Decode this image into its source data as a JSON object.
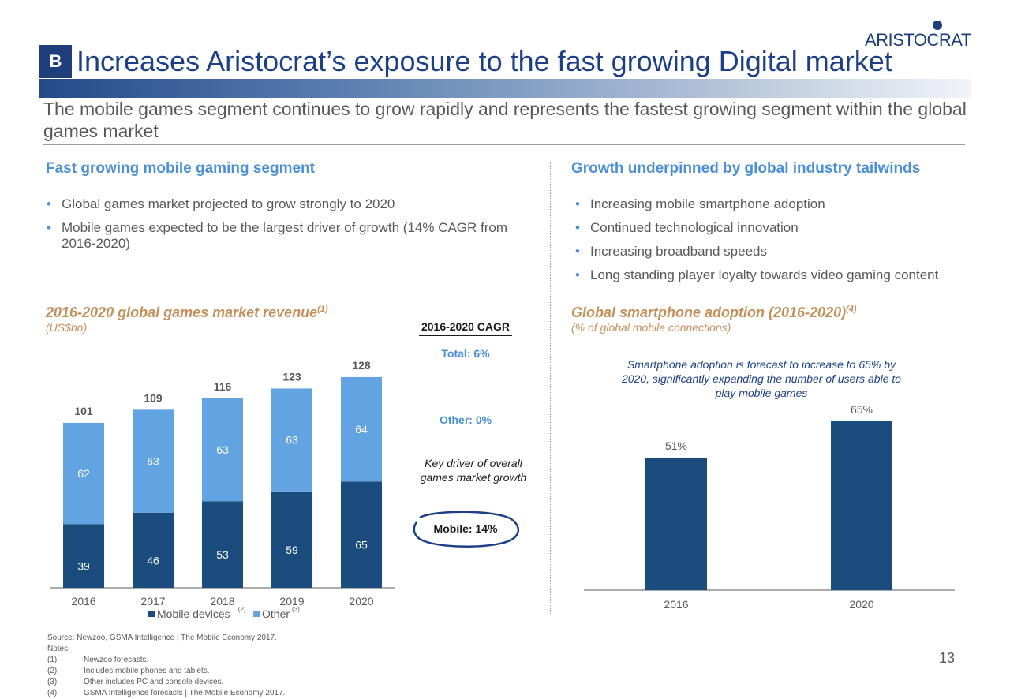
{
  "header": {
    "badge": "B",
    "title": "Increases Aristocrat’s exposure to the fast growing Digital market",
    "logo_text": "ARISTOCRAT",
    "subtitle": "The mobile games segment continues to grow rapidly and represents the fastest growing segment within the global games market"
  },
  "left": {
    "heading": "Fast growing mobile gaming segment",
    "bullets": [
      "Global games market projected to grow strongly to 2020",
      "Mobile games expected to be the largest driver of growth (14% CAGR from 2016-2020)"
    ]
  },
  "right": {
    "heading": "Growth underpinned by global industry tailwinds",
    "bullets": [
      "Increasing mobile smartphone adoption",
      "Continued technological innovation",
      "Increasing broadband speeds",
      "Long standing player loyalty towards video gaming content"
    ]
  },
  "cagr": {
    "heading": "2016-2020 CAGR",
    "total": "Total: 6%",
    "other": "Other: 0%",
    "key_driver": "Key driver of overall games market growth",
    "mobile": "Mobile: 14%"
  },
  "footnotes": {
    "source": "Source:  Newzoo, GSMA Intelligence | The Mobile Economy 2017.",
    "notes_label": "Notes:",
    "items": [
      {
        "num": "(1)",
        "text": "Newzoo forecasts."
      },
      {
        "num": "(2)",
        "text": "Includes mobile phones and tablets."
      },
      {
        "num": "(3)",
        "text": "Other includes PC and console devices."
      },
      {
        "num": "(4)",
        "text": "GSMA Intelligence forecasts | The Mobile Economy 2017."
      }
    ]
  },
  "page_number": "13",
  "colors": {
    "dark_blue": "#1a4c7d",
    "light_blue": "#62a3e1",
    "title_blue": "#1d3f86",
    "accent_blue": "#4b8fd6",
    "chart_title_tan": "#c4905a"
  },
  "chart_data": [
    {
      "type": "bar",
      "stacked": true,
      "title": "2016-2020 global games market revenue",
      "title_note": "(1)",
      "subtitle": "(US$bn)",
      "categories": [
        "2016",
        "2017",
        "2018",
        "2019",
        "2020"
      ],
      "series": [
        {
          "name": "Mobile devices",
          "note": "(2)",
          "values": [
            39,
            46,
            53,
            59,
            65
          ],
          "color": "#1a4c7d"
        },
        {
          "name": "Other",
          "note": "(3)",
          "values": [
            62,
            63,
            63,
            63,
            64
          ],
          "color": "#62a3e1"
        }
      ],
      "totals": [
        101,
        109,
        116,
        123,
        128
      ],
      "ylim": [
        0,
        128
      ],
      "legend": "bottom"
    },
    {
      "type": "bar",
      "title": "Global smartphone adoption (2016-2020)",
      "title_note": "(4)",
      "subtitle": "(% of global mobile connections)",
      "categories": [
        "2016",
        "2020"
      ],
      "values": [
        51,
        65
      ],
      "value_labels": [
        "51%",
        "65%"
      ],
      "annotation": "Smartphone adoption is forecast to increase to 65% by 2020, significantly expanding the number of users able to play mobile games",
      "color": "#1a4c7d",
      "ylim": [
        0,
        65
      ]
    }
  ]
}
